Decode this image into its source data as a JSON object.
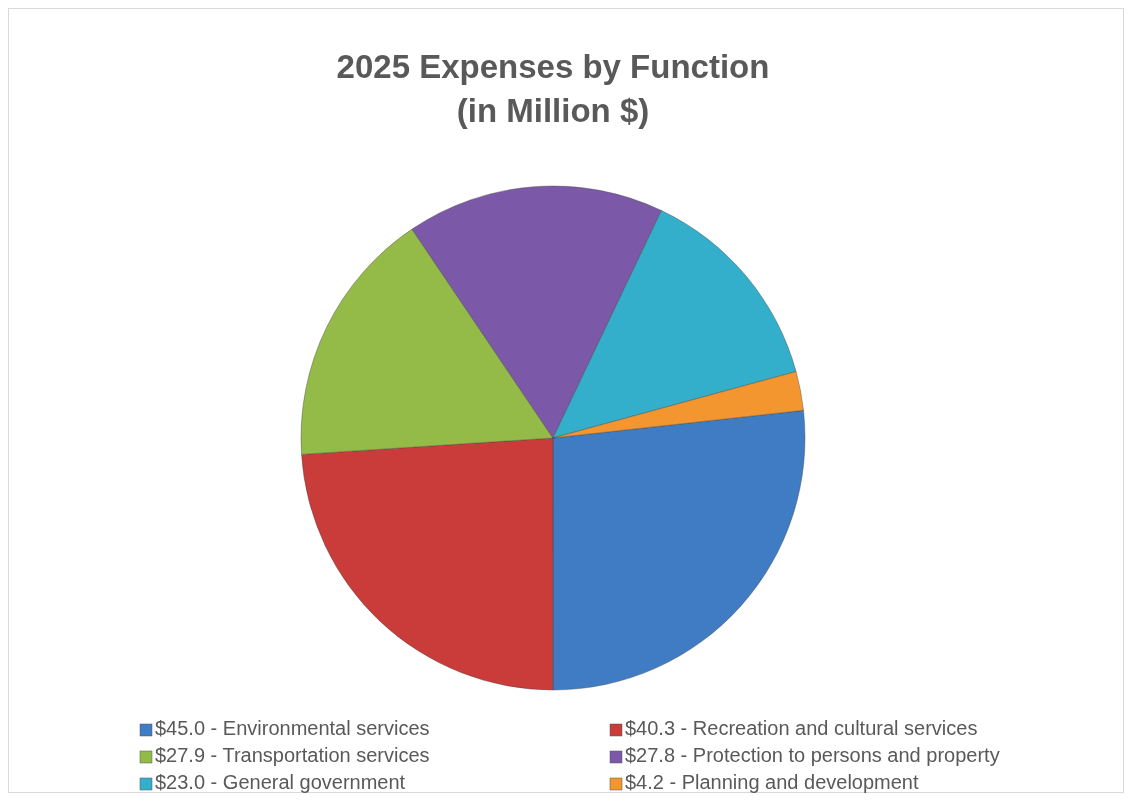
{
  "chart_data": {
    "type": "pie",
    "title": "2025 Expenses by Function\n(in Million $)",
    "categories": [
      "$45.0 - Environmental services",
      "$40.3 - Recreation and cultural services",
      "$27.9 - Transportation services",
      "$27.8 - Protection to persons and property",
      "$23.0 - General government",
      "$4.2 - Planning and development"
    ],
    "values": [
      45.0,
      40.3,
      27.9,
      27.8,
      23.0,
      4.2
    ],
    "colors": [
      "#3f7cc4",
      "#c93c3a",
      "#94bb48",
      "#7b58a8",
      "#33aecb",
      "#f39630"
    ],
    "legend": "bottom"
  }
}
